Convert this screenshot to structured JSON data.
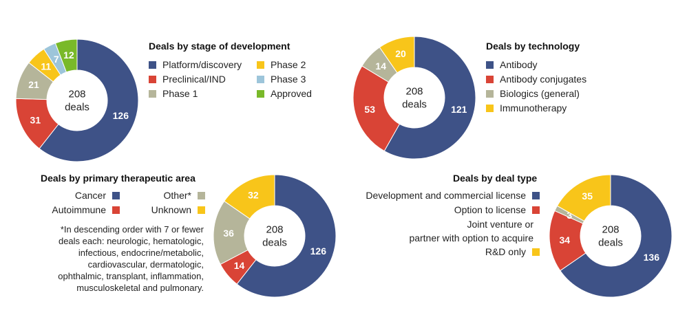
{
  "colors": {
    "navy": "#3e5287",
    "red": "#d94436",
    "gray": "#b5b59a",
    "yellow": "#f8c51a",
    "lightblue": "#9dc5da",
    "green": "#79b929"
  },
  "chart_data": [
    {
      "id": "stage",
      "type": "pie",
      "style": "donut",
      "title": "Deals by stage of development",
      "center": [
        "208",
        "deals"
      ],
      "slices": [
        {
          "label": "Platform/discovery",
          "value": 126,
          "color": "#3e5287"
        },
        {
          "label": "Preclinical/IND",
          "value": 31,
          "color": "#d94436"
        },
        {
          "label": "Phase 1",
          "value": 21,
          "color": "#b5b59a"
        },
        {
          "label": "Phase 2",
          "value": 11,
          "color": "#f8c51a"
        },
        {
          "label": "Phase 3",
          "value": 7,
          "color": "#9dc5da"
        },
        {
          "label": "Approved",
          "value": 12,
          "color": "#79b929"
        }
      ]
    },
    {
      "id": "tech",
      "type": "pie",
      "style": "donut",
      "title": "Deals by technology",
      "center": [
        "208",
        "deals"
      ],
      "slices": [
        {
          "label": "Antibody",
          "value": 121,
          "color": "#3e5287"
        },
        {
          "label": "Antibody conjugates",
          "value": 53,
          "color": "#d94436"
        },
        {
          "label": "Biologics (general)",
          "value": 14,
          "color": "#b5b59a"
        },
        {
          "label": "Immunotherapy",
          "value": 20,
          "color": "#f8c51a"
        }
      ]
    },
    {
      "id": "therapy",
      "type": "pie",
      "style": "donut",
      "title": "Deals by primary therapeutic area",
      "center": [
        "208",
        "deals"
      ],
      "slices": [
        {
          "label": "Cancer",
          "value": 126,
          "color": "#3e5287"
        },
        {
          "label": "Autoimmune",
          "value": 14,
          "color": "#d94436"
        },
        {
          "label": "Other*",
          "value": 36,
          "color": "#b5b59a"
        },
        {
          "label": "Unknown",
          "value": 32,
          "color": "#f8c51a"
        }
      ],
      "footnote": [
        "*In descending order with 7 or fewer",
        "deals each: neurologic, hematologic,",
        "infectious, endocrine/metabolic,",
        "cardiovascular, dermatologic,",
        "ophthalmic, transplant, inflammation,",
        "musculoskeletal and pulmonary."
      ]
    },
    {
      "id": "dealtype",
      "type": "pie",
      "style": "donut",
      "title": "Deals by deal type",
      "center": [
        "208",
        "deals"
      ],
      "slices": [
        {
          "label": "Development and commercial license",
          "value": 136,
          "color": "#3e5287"
        },
        {
          "label": "Option to license",
          "value": 34,
          "color": "#d94436"
        },
        {
          "label": "Joint venture or partner with option to acquire",
          "lines": [
            "Joint venture or",
            "partner with option to acquire"
          ],
          "value": 3,
          "color": "#b5b59a"
        },
        {
          "label": "R&D only",
          "value": 35,
          "color": "#f8c51a"
        }
      ]
    }
  ]
}
